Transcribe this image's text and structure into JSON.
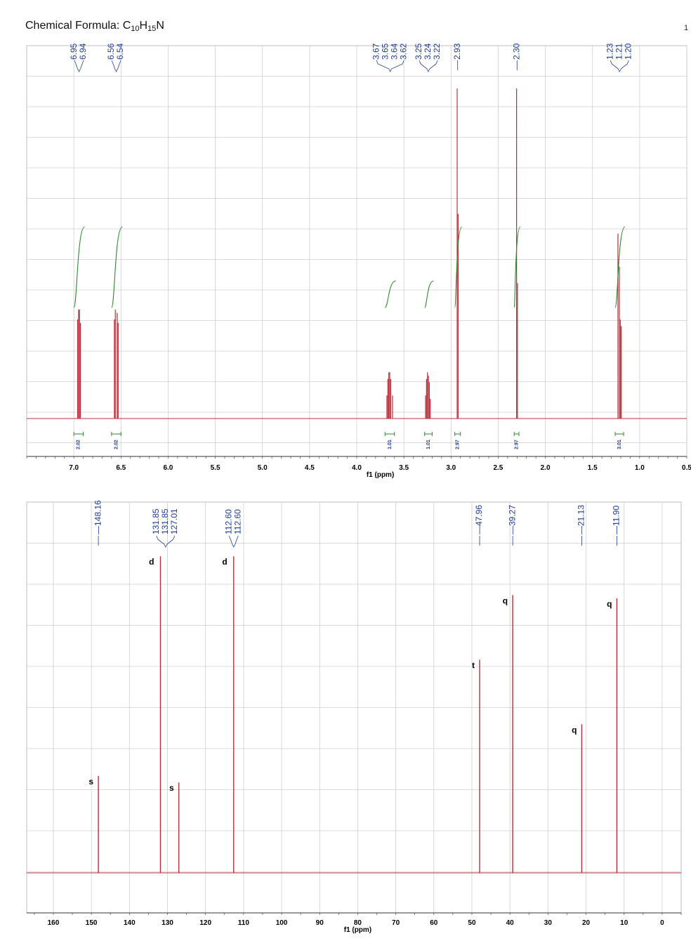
{
  "header": {
    "formula_prefix": "Chemical Formula: C",
    "formula_sub1": "10",
    "formula_h": "H",
    "formula_sub2": "15",
    "formula_n": "N",
    "page_mark": "1"
  },
  "colors": {
    "spectrum": "#b8303b",
    "labels": "#1e3b9a",
    "integral": "#2f8a2f",
    "grid": "#cfcfcf"
  },
  "chart_data": [
    {
      "type": "line",
      "title": "",
      "xlabel": "f1 (ppm)",
      "xlim": [
        7.5,
        0.5
      ],
      "x_ticks": [
        "7.0",
        "6.5",
        "6.0",
        "5.5",
        "5.0",
        "4.5",
        "4.0",
        "3.5",
        "3.0",
        "2.5",
        "2.0",
        "1.5",
        "1.0",
        "0.5"
      ],
      "grid": true,
      "peak_labels": [
        {
          "group": 1,
          "values": [
            "6.95",
            "6.94"
          ]
        },
        {
          "group": 2,
          "values": [
            "6.56",
            "6.54"
          ]
        },
        {
          "group": 3,
          "values": [
            "3.67",
            "3.65",
            "3.64",
            "3.62"
          ]
        },
        {
          "group": 4,
          "values": [
            "3.25",
            "3.24",
            "3.22"
          ]
        },
        {
          "group": 5,
          "values": [
            "2.93"
          ]
        },
        {
          "group": 6,
          "values": [
            "2.30"
          ]
        },
        {
          "group": 7,
          "values": [
            "1.23",
            "1.21",
            "1.20"
          ]
        }
      ],
      "peaks": [
        {
          "ppm": 6.96,
          "height": 0.3
        },
        {
          "ppm": 6.95,
          "height": 0.33
        },
        {
          "ppm": 6.94,
          "height": 0.33
        },
        {
          "ppm": 6.93,
          "height": 0.29
        },
        {
          "ppm": 6.57,
          "height": 0.3
        },
        {
          "ppm": 6.56,
          "height": 0.33
        },
        {
          "ppm": 6.54,
          "height": 0.32
        },
        {
          "ppm": 6.53,
          "height": 0.29
        },
        {
          "ppm": 3.68,
          "height": 0.07
        },
        {
          "ppm": 3.67,
          "height": 0.12
        },
        {
          "ppm": 3.66,
          "height": 0.14
        },
        {
          "ppm": 3.65,
          "height": 0.14
        },
        {
          "ppm": 3.64,
          "height": 0.12
        },
        {
          "ppm": 3.62,
          "height": 0.07
        },
        {
          "ppm": 3.27,
          "height": 0.07
        },
        {
          "ppm": 3.26,
          "height": 0.12
        },
        {
          "ppm": 3.25,
          "height": 0.14
        },
        {
          "ppm": 3.24,
          "height": 0.13
        },
        {
          "ppm": 3.23,
          "height": 0.11
        },
        {
          "ppm": 3.22,
          "height": 0.06
        },
        {
          "ppm": 2.935,
          "height": 1.0
        },
        {
          "ppm": 2.925,
          "height": 0.62
        },
        {
          "ppm": 2.305,
          "height": 1.0
        },
        {
          "ppm": 2.295,
          "height": 0.41
        },
        {
          "ppm": 1.23,
          "height": 0.56
        },
        {
          "ppm": 1.215,
          "height": 0.46
        },
        {
          "ppm": 1.205,
          "height": 0.3
        },
        {
          "ppm": 1.195,
          "height": 0.28
        }
      ],
      "integrals": [
        {
          "from": 7.0,
          "to": 6.9,
          "value": "2.02"
        },
        {
          "from": 6.6,
          "to": 6.5,
          "value": "2.02"
        },
        {
          "from": 3.7,
          "to": 3.6,
          "value": "1.01"
        },
        {
          "from": 3.28,
          "to": 3.2,
          "value": "1.01"
        },
        {
          "from": 2.96,
          "to": 2.9,
          "value": "2.97"
        },
        {
          "from": 2.33,
          "to": 2.28,
          "value": "2.97"
        },
        {
          "from": 1.26,
          "to": 1.17,
          "value": "3.01"
        }
      ]
    },
    {
      "type": "line",
      "title": "",
      "xlabel": "f1 (ppm)",
      "xlim": [
        167,
        -5
      ],
      "x_ticks": [
        "160",
        "150",
        "140",
        "130",
        "120",
        "110",
        "100",
        "90",
        "80",
        "70",
        "60",
        "50",
        "40",
        "30",
        "20",
        "10",
        "0"
      ],
      "grid": true,
      "peak_labels": [
        {
          "group": 1,
          "values": [
            "148.16"
          ]
        },
        {
          "group": 2,
          "values": [
            "131.85",
            "131.85",
            "127.01"
          ]
        },
        {
          "group": 3,
          "values": [
            "112.60",
            "112.60"
          ]
        },
        {
          "group": 4,
          "values": [
            "47.96"
          ]
        },
        {
          "group": 5,
          "values": [
            "39.27"
          ]
        },
        {
          "group": 6,
          "values": [
            "21.13"
          ]
        },
        {
          "group": 7,
          "values": [
            "11.90"
          ]
        }
      ],
      "peaks": [
        {
          "ppm": 148.16,
          "height": 0.3,
          "mult": "s"
        },
        {
          "ppm": 131.85,
          "height": 0.98,
          "mult": "d"
        },
        {
          "ppm": 127.01,
          "height": 0.28,
          "mult": "s"
        },
        {
          "ppm": 112.6,
          "height": 0.98,
          "mult": "d"
        },
        {
          "ppm": 47.96,
          "height": 0.66,
          "mult": "t"
        },
        {
          "ppm": 39.27,
          "height": 0.86,
          "mult": "q"
        },
        {
          "ppm": 21.13,
          "height": 0.46,
          "mult": "q"
        },
        {
          "ppm": 11.9,
          "height": 0.85,
          "mult": "q"
        }
      ]
    }
  ]
}
